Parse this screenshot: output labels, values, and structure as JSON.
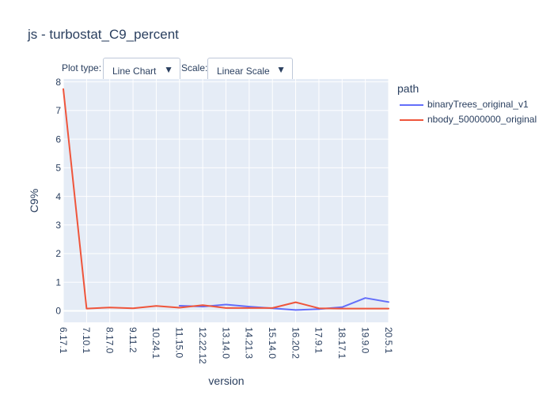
{
  "header": {
    "title": "js - turbostat_C9_percent"
  },
  "controls": {
    "plot_type_label": "Plot type:",
    "plot_type_value": "Line Chart",
    "scale_label": "Scale:",
    "scale_value": "Linear Scale",
    "arrow_glyph": "▼"
  },
  "legend": {
    "title": "path"
  },
  "chart_data": {
    "type": "line",
    "title": "js - turbostat_C9_percent",
    "xlabel": "version",
    "ylabel": "C9%",
    "categories": [
      "6.17.1",
      "7.10.1",
      "8.17.0",
      "9.11.2",
      "10.24.1",
      "11.15.0",
      "12.22.12",
      "13.14.0",
      "14.21.3",
      "15.14.0",
      "16.20.2",
      "17.9.1",
      "18.17.1",
      "19.9.0",
      "20.5.1"
    ],
    "ylim": [
      -0.4,
      8.1
    ],
    "yticks": [
      0,
      1,
      2,
      3,
      4,
      5,
      6,
      7,
      8
    ],
    "grid": true,
    "legend_position": "top-right",
    "series": [
      {
        "name": "binaryTrees_original_v1",
        "color": "#636efa",
        "values": [
          null,
          null,
          null,
          null,
          null,
          0.18,
          0.15,
          0.22,
          0.15,
          0.09,
          0.03,
          0.06,
          0.13,
          0.45,
          0.31
        ]
      },
      {
        "name": "nbody_50000000_original",
        "color": "#ef553b",
        "values": [
          7.75,
          0.08,
          0.12,
          0.09,
          0.17,
          0.11,
          0.2,
          0.1,
          0.1,
          0.1,
          0.3,
          0.09,
          0.08,
          0.08,
          0.08
        ]
      }
    ]
  },
  "colors": {
    "plot_background": "#e5ecf6",
    "grid": "#ffffff",
    "text": "#2a3f5f"
  }
}
